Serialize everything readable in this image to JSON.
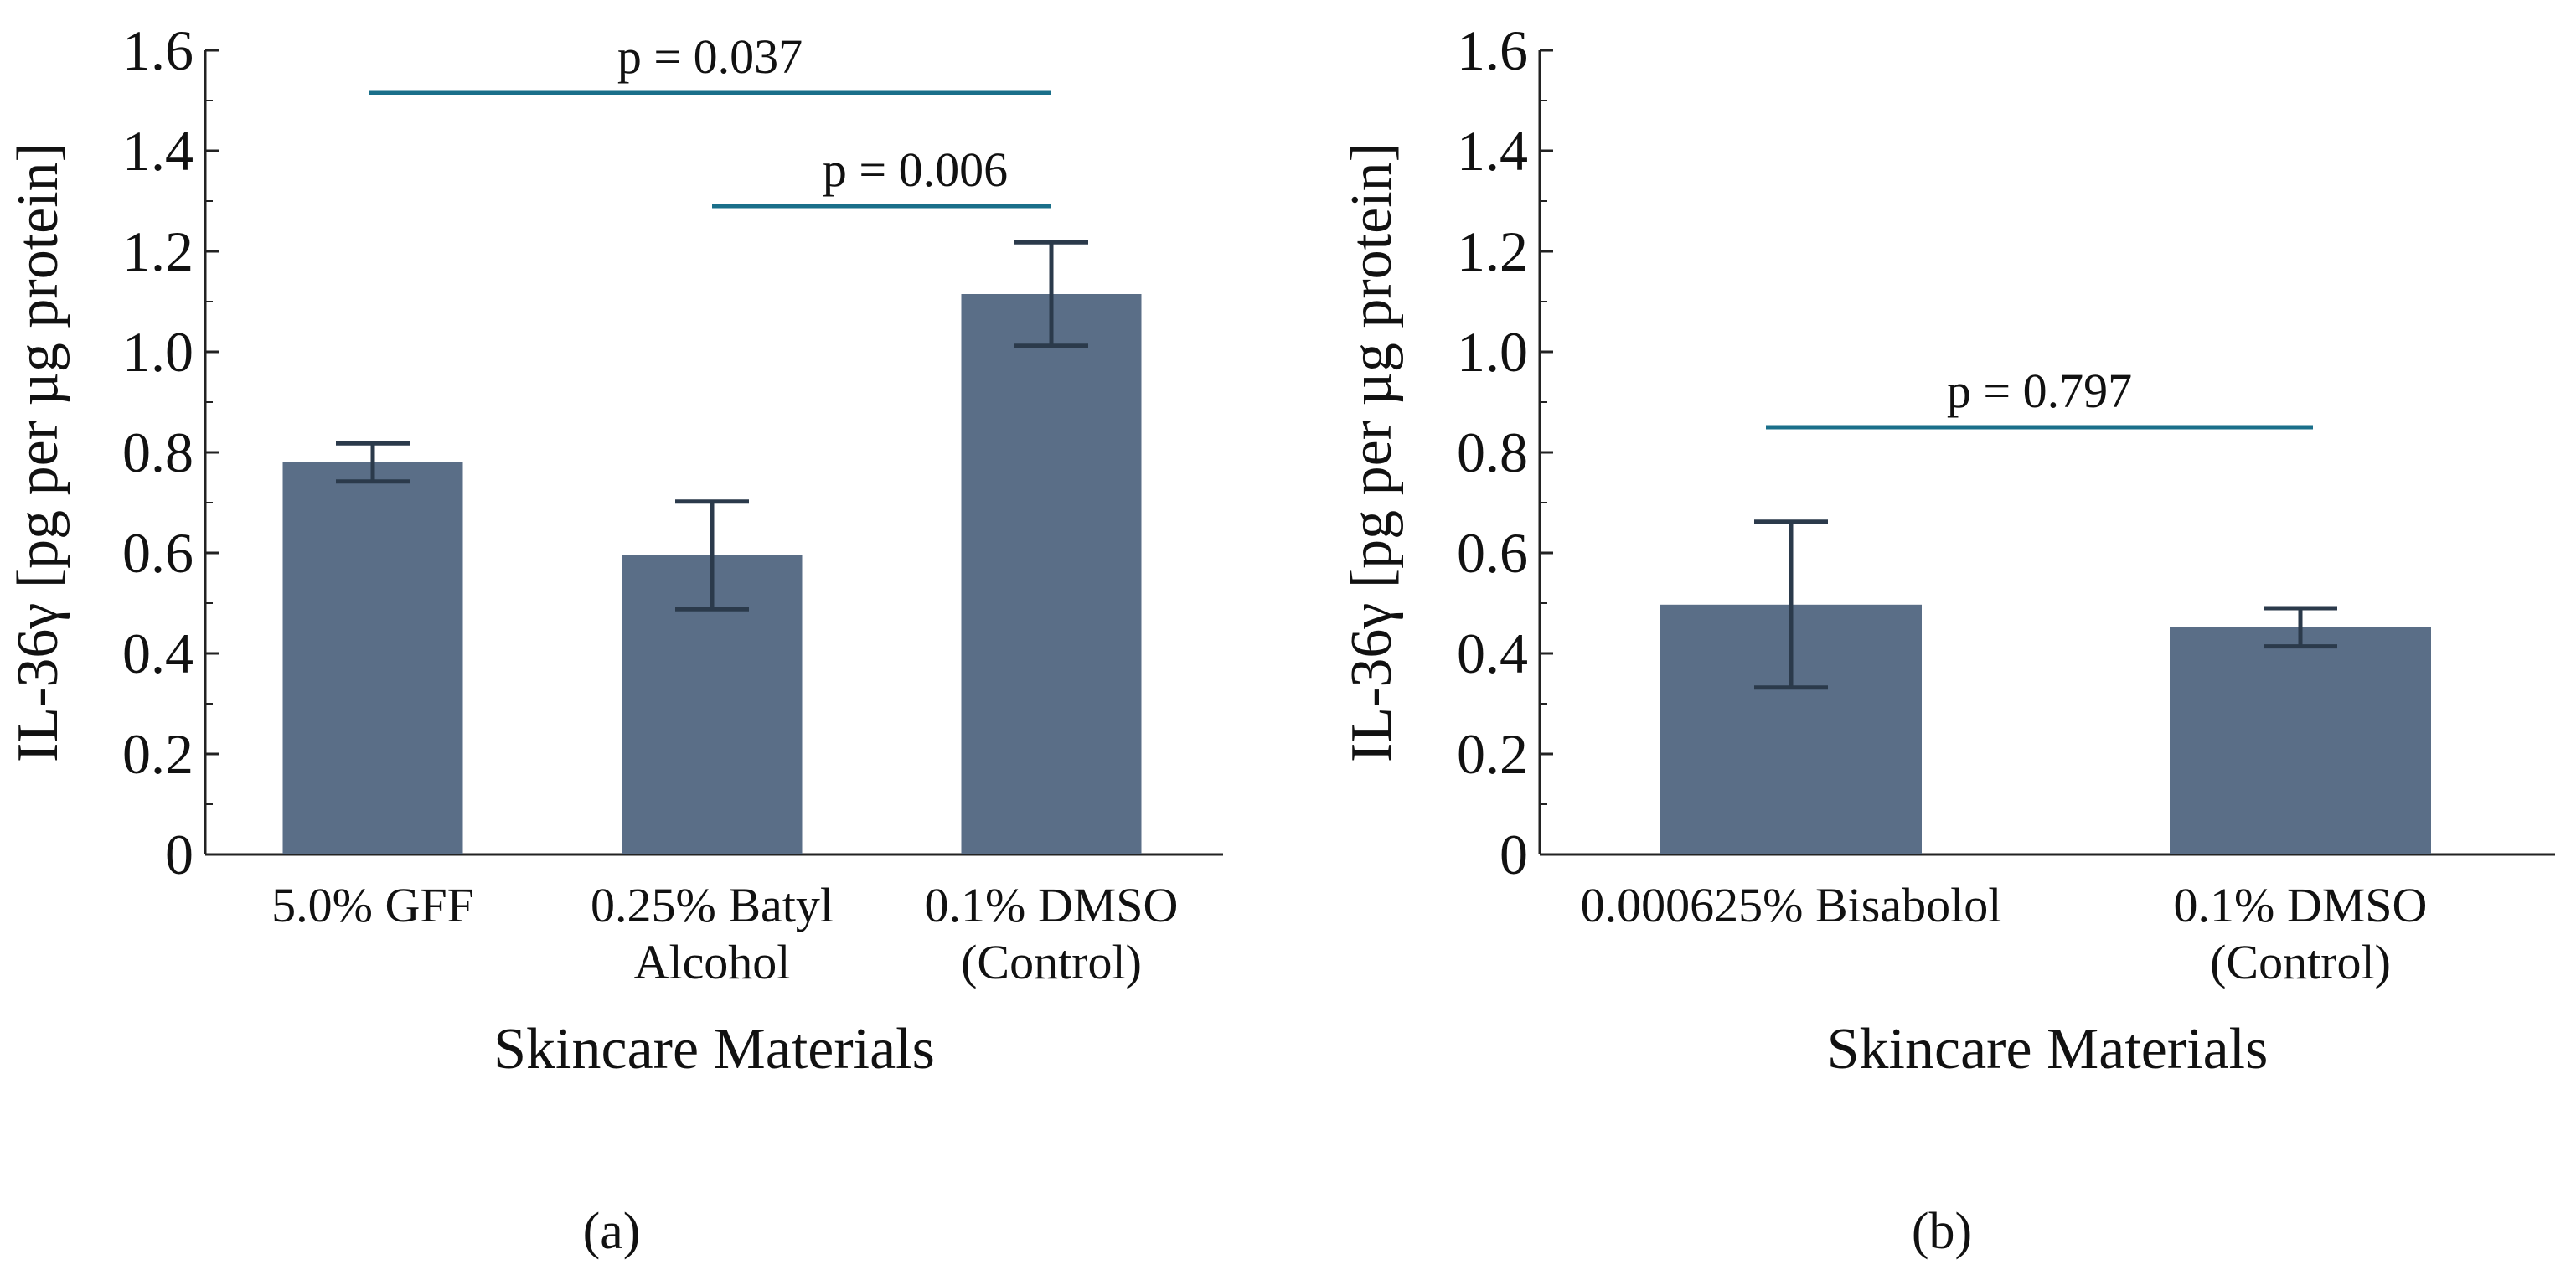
{
  "colors": {
    "bar": "#5a6e87",
    "error_bar": "#2b3a4b",
    "significance_line": "#1a6f8a",
    "axis": "#222222"
  },
  "chart_data": [
    {
      "type": "bar",
      "panel_label": "(a)",
      "title": "",
      "xlabel": "Skincare Materials",
      "ylabel": "IL-36γ [pg per µg protein]",
      "ylim": [
        0,
        1.6
      ],
      "yticks": [
        "0",
        "0.2",
        "0.4",
        "0.6",
        "0.8",
        "1.0",
        "1.2",
        "1.4",
        "1.6"
      ],
      "categories": [
        {
          "lines": [
            "5.0% GFF"
          ]
        },
        {
          "lines": [
            "0.25% Batyl",
            "Alcohol"
          ]
        },
        {
          "lines": [
            "0.1% DMSO",
            "(Control)"
          ]
        }
      ],
      "values": [
        0.78,
        0.595,
        1.115
      ],
      "errors": [
        0.038,
        0.107,
        0.103
      ],
      "significance": [
        {
          "from": 0,
          "to": 2,
          "y": 1.515,
          "label": "p = 0.037"
        },
        {
          "from": 1,
          "to": 2,
          "y": 1.29,
          "label": "p = 0.006"
        }
      ]
    },
    {
      "type": "bar",
      "panel_label": "(b)",
      "title": "",
      "xlabel": "Skincare Materials",
      "ylabel": "IL-36γ [pg per µg protein]",
      "ylim": [
        0,
        1.6
      ],
      "yticks": [
        "0",
        "0.2",
        "0.4",
        "0.6",
        "0.8",
        "1.0",
        "1.2",
        "1.4",
        "1.6"
      ],
      "categories": [
        {
          "lines": [
            "0.000625% Bisabolol"
          ]
        },
        {
          "lines": [
            "0.1% DMSO",
            "(Control)"
          ]
        }
      ],
      "values": [
        0.497,
        0.452
      ],
      "errors": [
        0.165,
        0.038
      ],
      "significance": [
        {
          "from": 0,
          "to": 1,
          "y": 0.85,
          "label": "p = 0.797"
        }
      ]
    }
  ]
}
